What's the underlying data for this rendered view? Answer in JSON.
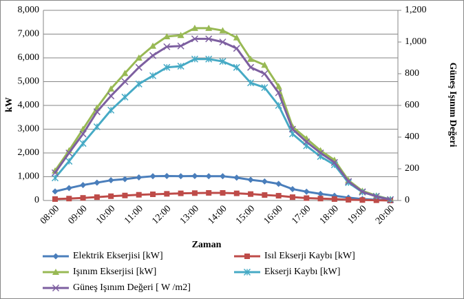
{
  "chart_data": {
    "type": "line",
    "x_label": "Zaman",
    "y_label": "kW",
    "y2_label": "Güneş Işınım Değeri",
    "categories": [
      "08:00",
      null,
      "09:00",
      null,
      "10:00",
      null,
      "11:00",
      null,
      "12:00",
      null,
      "13:00",
      null,
      "14:00",
      null,
      "15:00",
      null,
      "16:00",
      null,
      "17:00",
      null,
      "18:00",
      null,
      "19:00",
      null,
      "20:00"
    ],
    "ylim": [
      0,
      8000
    ],
    "yticks": [
      0,
      {
        "value": 1000,
        "label": "1,000"
      },
      {
        "value": 2000,
        "label": "2,000"
      },
      {
        "value": 3000,
        "label": "3,000"
      },
      {
        "value": 4000,
        "label": "4,000"
      },
      {
        "value": 5000,
        "label": "5,000"
      },
      {
        "value": 6000,
        "label": "6,000"
      },
      {
        "value": 7000,
        "label": "7,000"
      },
      {
        "value": 8000,
        "label": "8,000"
      }
    ],
    "y2lim": [
      0,
      1200
    ],
    "y2ticks": [
      0,
      200,
      400,
      600,
      800,
      {
        "value": 1000,
        "label": "1,000"
      },
      {
        "value": 1200,
        "label": "1,200"
      }
    ],
    "grid": true,
    "legend": "bottom",
    "series": [
      {
        "name": "Elektrik Ekserjisi [kW]",
        "color": "#4a7ebb",
        "marker": "diamond",
        "values": [
          380,
          520,
          650,
          750,
          850,
          900,
          970,
          1020,
          1030,
          1020,
          1030,
          1020,
          1020,
          960,
          870,
          800,
          700,
          480,
          370,
          280,
          200,
          120,
          60,
          30,
          10
        ]
      },
      {
        "name": "Isıl Ekserji Kaybı [kW]",
        "color": "#be4b48",
        "marker": "square",
        "values": [
          60,
          80,
          110,
          140,
          180,
          210,
          240,
          260,
          280,
          300,
          310,
          320,
          320,
          300,
          270,
          230,
          200,
          140,
          100,
          80,
          60,
          30,
          20,
          10,
          0
        ]
      },
      {
        "name": "Işınım Ekserjisi [kW]",
        "color": "#98b954",
        "marker": "triangle",
        "values": [
          1250,
          2100,
          3000,
          3900,
          4700,
          5350,
          6000,
          6500,
          6900,
          6950,
          7250,
          7250,
          7150,
          6850,
          5950,
          5700,
          4800,
          3100,
          2600,
          2100,
          1700,
          850,
          400,
          200,
          50
        ]
      },
      {
        "name": "Ekserji Kaybı [kW]",
        "color": "#46aac5",
        "marker": "star",
        "values": [
          950,
          1650,
          2400,
          3100,
          3800,
          4350,
          4900,
          5250,
          5600,
          5650,
          5950,
          5950,
          5850,
          5600,
          4950,
          4750,
          4000,
          2800,
          2300,
          1850,
          1500,
          750,
          350,
          180,
          40
        ]
      },
      {
        "name": "Güneş Işınım Değeri [ W /m2]",
        "color": "#7d5fa0",
        "marker": "x",
        "axis": "y2",
        "values": [
          175,
          300,
          420,
          560,
          660,
          750,
          840,
          915,
          970,
          975,
          1020,
          1020,
          1000,
          960,
          840,
          800,
          680,
          450,
          370,
          300,
          240,
          120,
          55,
          25,
          5
        ]
      }
    ]
  }
}
